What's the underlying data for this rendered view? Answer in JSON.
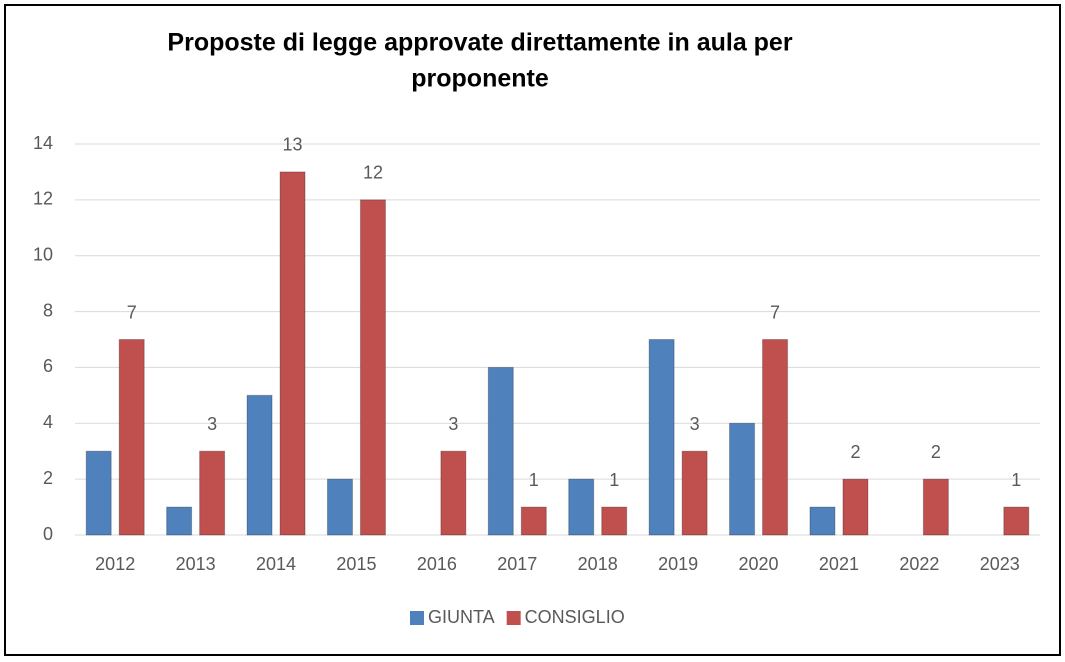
{
  "chart_data": {
    "type": "bar",
    "title": [
      "Proposte di legge approvate direttamente in aula per",
      "proponente"
    ],
    "categories": [
      "2012",
      "2013",
      "2014",
      "2015",
      "2016",
      "2017",
      "2018",
      "2019",
      "2020",
      "2021",
      "2022",
      "2023"
    ],
    "series": [
      {
        "name": "GIUNTA",
        "color": "#4f81bd",
        "values": [
          3,
          1,
          5,
          2,
          0,
          6,
          2,
          7,
          4,
          1,
          0,
          0
        ],
        "show_labels": false
      },
      {
        "name": "CONSIGLIO",
        "color": "#c0504d",
        "values": [
          7,
          3,
          13,
          12,
          3,
          1,
          1,
          3,
          7,
          2,
          2,
          1
        ],
        "show_labels": true
      }
    ],
    "ylim": [
      0,
      14
    ],
    "yticks": [
      0,
      2,
      4,
      6,
      8,
      10,
      12,
      14
    ],
    "grid": true,
    "legend": "bottom"
  }
}
